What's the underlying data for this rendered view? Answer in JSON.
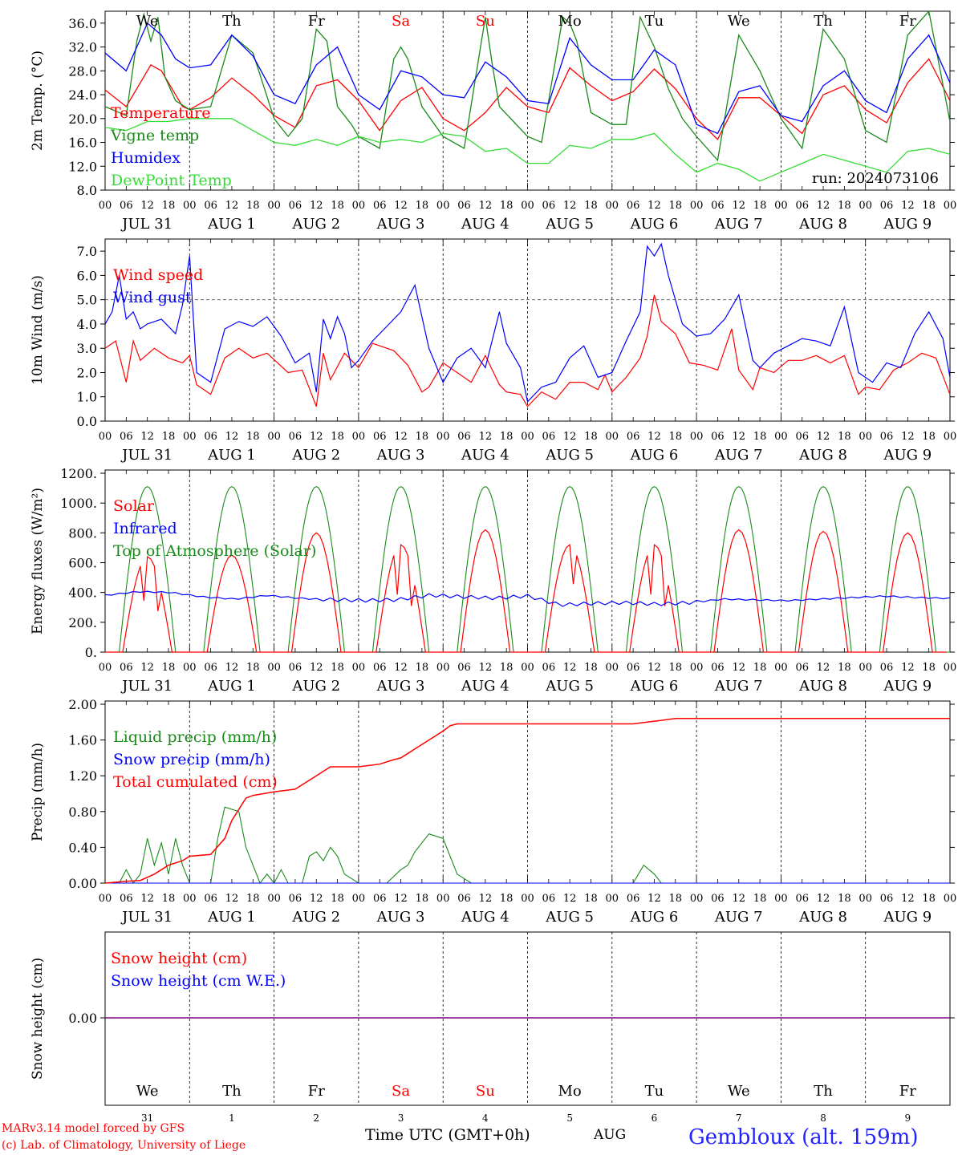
{
  "colors": {
    "red": "#ff0000",
    "green": "#1a8a1a",
    "blue": "#0000ff",
    "lightgreen": "#33dd33",
    "purple": "#800080",
    "weekend": "#ff0000"
  },
  "footer": {
    "model": "MARv3.14 model forced by GFS",
    "copyright": "(c) Lab. of Climatology, University of Liege",
    "xaxis_title": "Time UTC (GMT+0h)",
    "month": "AUG",
    "station": "Gembloux (alt. 159m)"
  },
  "days": [
    {
      "dow": "We",
      "date": "JUL 31",
      "num": "31",
      "weekend": false
    },
    {
      "dow": "Th",
      "date": "AUG  1",
      "num": "1",
      "weekend": false
    },
    {
      "dow": "Fr",
      "date": "AUG  2",
      "num": "2",
      "weekend": false
    },
    {
      "dow": "Sa",
      "date": "AUG  3",
      "num": "3",
      "weekend": true
    },
    {
      "dow": "Su",
      "date": "AUG  4",
      "num": "4",
      "weekend": true
    },
    {
      "dow": "Mo",
      "date": "AUG  5",
      "num": "5",
      "weekend": false
    },
    {
      "dow": "Tu",
      "date": "AUG  6",
      "num": "6",
      "weekend": false
    },
    {
      "dow": "We",
      "date": "AUG  7",
      "num": "7",
      "weekend": false
    },
    {
      "dow": "Th",
      "date": "AUG  8",
      "num": "8",
      "weekend": false
    },
    {
      "dow": "Fr",
      "date": "AUG  9",
      "num": "9",
      "weekend": false
    }
  ],
  "hour_ticks": [
    "00",
    "06",
    "12",
    "18"
  ],
  "chart_data": [
    {
      "type": "line",
      "id": "temp",
      "ylabel": "2m Temp. (°C)",
      "ylim": [
        8,
        38
      ],
      "yticks": [
        "8.0",
        "12.0",
        "16.0",
        "20.0",
        "24.0",
        "28.0",
        "32.0",
        "36.0"
      ],
      "annotation": "run: 2024073106",
      "x_unit": "hours since JUL 31 00 UTC",
      "series": [
        {
          "name": "Temperature",
          "color": "red",
          "x": [
            0,
            6,
            10,
            13,
            16,
            20,
            22,
            24,
            30,
            36,
            42,
            48,
            54,
            60,
            66,
            72,
            78,
            84,
            90,
            96,
            102,
            108,
            114,
            120,
            126,
            132,
            138,
            144,
            150,
            156,
            162,
            168,
            174,
            180,
            186,
            192,
            198,
            204,
            210,
            216,
            222,
            228,
            234,
            240
          ],
          "y": [
            24.8,
            22,
            26,
            29,
            28,
            24,
            22,
            21.5,
            23.5,
            26.8,
            24,
            20.5,
            18.5,
            25.5,
            26.5,
            23,
            18,
            23,
            25.2,
            20,
            18,
            21,
            25.2,
            22,
            21,
            28.5,
            25.5,
            23,
            24.5,
            28.3,
            25,
            20,
            16.5,
            23.5,
            23.5,
            20.5,
            17.5,
            24,
            25.5,
            21.5,
            19.3,
            26,
            30,
            23
          ]
        },
        {
          "name": "Vigne temp",
          "color": "green",
          "x": [
            0,
            6,
            9,
            11,
            13,
            15,
            17,
            20,
            24,
            30,
            36,
            42,
            48,
            52,
            56,
            60,
            63,
            66,
            70,
            72,
            78,
            82,
            84,
            86,
            90,
            96,
            102,
            108,
            110,
            112,
            120,
            124,
            130,
            132,
            134,
            138,
            144,
            148,
            152,
            156,
            160,
            164,
            168,
            174,
            180,
            186,
            192,
            198,
            204,
            210,
            216,
            222,
            228,
            234,
            240
          ],
          "y": [
            22,
            20.5,
            33,
            37.5,
            33,
            37,
            27,
            23,
            21.5,
            22,
            34,
            31,
            20,
            17,
            20,
            35,
            33,
            22,
            19,
            17,
            15,
            30,
            32,
            30,
            22,
            17,
            15,
            37,
            29,
            22,
            17,
            16,
            37,
            36,
            33,
            21,
            19,
            19,
            37,
            32,
            25,
            20,
            17,
            13,
            34,
            28,
            20,
            15,
            35,
            30,
            18,
            16,
            34,
            38,
            19.5
          ]
        },
        {
          "name": "Humidex",
          "color": "blue",
          "x": [
            0,
            6,
            9,
            12,
            16,
            20,
            24,
            30,
            36,
            42,
            48,
            54,
            60,
            66,
            72,
            78,
            84,
            90,
            96,
            102,
            108,
            114,
            120,
            126,
            132,
            138,
            144,
            150,
            156,
            162,
            168,
            174,
            180,
            186,
            192,
            198,
            204,
            210,
            216,
            222,
            228,
            234,
            240
          ],
          "y": [
            31,
            28,
            32,
            36,
            34,
            30,
            28.5,
            29,
            34,
            30.5,
            24,
            22.5,
            29,
            32,
            24,
            21.5,
            28,
            27,
            24,
            23.5,
            29.5,
            27,
            23,
            22.5,
            33.5,
            29,
            26.5,
            26.5,
            31.5,
            29,
            19,
            17.5,
            24.5,
            25.5,
            20.5,
            19.5,
            25.5,
            28,
            23,
            21,
            30,
            34,
            26
          ]
        },
        {
          "name": "DewPoint Temp",
          "color": "lightgreen",
          "x": [
            0,
            6,
            12,
            18,
            24,
            30,
            36,
            42,
            48,
            54,
            60,
            66,
            72,
            78,
            84,
            90,
            96,
            102,
            108,
            114,
            120,
            126,
            132,
            138,
            144,
            150,
            156,
            162,
            168,
            174,
            180,
            186,
            192,
            198,
            204,
            210,
            216,
            222,
            228,
            234,
            240
          ],
          "y": [
            18.5,
            18,
            19.5,
            19.5,
            20,
            20,
            20,
            18,
            16,
            15.5,
            16.5,
            15.5,
            17,
            16,
            16.5,
            16,
            17.5,
            17,
            14.5,
            15,
            12.5,
            12.5,
            15.5,
            15,
            16.5,
            16.5,
            17.5,
            14,
            11,
            12.5,
            11.5,
            9.5,
            11,
            12.5,
            14,
            13,
            12,
            11,
            14.5,
            15,
            14
          ]
        }
      ]
    },
    {
      "type": "line",
      "id": "wind",
      "ylabel": "10m Wind (m/s)",
      "ylim": [
        0,
        7.5
      ],
      "yticks": [
        "0.0",
        "1.0",
        "2.0",
        "3.0",
        "4.0",
        "5.0",
        "6.0",
        "7.0"
      ],
      "x_unit": "hours since JUL 31 00 UTC",
      "series": [
        {
          "name": "Wind speed",
          "color": "red",
          "x": [
            0,
            3,
            6,
            8,
            10,
            14,
            18,
            22,
            24,
            26,
            30,
            34,
            38,
            42,
            46,
            52,
            56,
            60,
            62,
            64,
            68,
            72,
            76,
            82,
            86,
            90,
            92,
            96,
            100,
            104,
            108,
            112,
            114,
            118,
            120,
            124,
            128,
            132,
            136,
            140,
            142,
            144,
            148,
            152,
            154,
            156,
            158,
            162,
            166,
            170,
            174,
            178,
            180,
            184,
            186,
            190,
            194,
            198,
            202,
            206,
            210,
            214,
            216,
            220,
            224,
            228,
            232,
            236,
            240
          ],
          "y": [
            3,
            3.3,
            1.6,
            3.3,
            2.5,
            3,
            2.6,
            2.4,
            2.7,
            1.5,
            1.1,
            2.6,
            3,
            2.6,
            2.8,
            2,
            2.1,
            0.6,
            2.8,
            1.7,
            2.8,
            2.2,
            3.2,
            2.9,
            2.3,
            1.2,
            1.4,
            2.4,
            2,
            1.6,
            2.7,
            1.5,
            1.2,
            1.1,
            0.6,
            1.2,
            0.9,
            1.6,
            1.6,
            1.3,
            1.9,
            1.2,
            1.8,
            2.6,
            3.5,
            5.2,
            4.1,
            3.6,
            2.4,
            2.3,
            2.1,
            3.8,
            2.1,
            1.3,
            2.2,
            2,
            2.5,
            2.5,
            2.7,
            2.4,
            2.7,
            1.1,
            1.4,
            1.3,
            2.1,
            2.4,
            2.8,
            2.6,
            1.1
          ]
        },
        {
          "name": "Wind gust",
          "color": "blue",
          "x": [
            0,
            2,
            4,
            6,
            8,
            10,
            12,
            16,
            20,
            22,
            24,
            26,
            30,
            34,
            38,
            42,
            46,
            50,
            54,
            58,
            60,
            62,
            64,
            66,
            68,
            70,
            72,
            76,
            80,
            84,
            88,
            92,
            96,
            100,
            104,
            108,
            112,
            114,
            118,
            120,
            124,
            128,
            132,
            136,
            140,
            144,
            148,
            152,
            154,
            156,
            158,
            160,
            164,
            168,
            172,
            176,
            180,
            184,
            186,
            190,
            194,
            198,
            202,
            206,
            210,
            214,
            218,
            222,
            226,
            230,
            234,
            238,
            240
          ],
          "y": [
            4,
            4.5,
            6,
            4.2,
            4.5,
            3.8,
            4,
            4.2,
            3.6,
            4.8,
            6.8,
            2,
            1.6,
            3.8,
            4.1,
            3.9,
            4.3,
            3.5,
            2.4,
            2.8,
            1.2,
            4.2,
            3.4,
            4.3,
            3.6,
            2.2,
            2.5,
            3.3,
            3.9,
            4.5,
            5.6,
            3,
            1.6,
            2.6,
            3,
            2.2,
            4.5,
            3.2,
            2.2,
            0.8,
            1.4,
            1.6,
            2.6,
            3.1,
            1.8,
            2,
            3.3,
            4.5,
            7.2,
            6.8,
            7.3,
            6,
            4,
            3.5,
            3.6,
            4.2,
            5.2,
            2.5,
            2.2,
            2.8,
            3.1,
            3.4,
            3.3,
            3.1,
            4.7,
            2,
            1.6,
            2.4,
            2.2,
            3.6,
            4.5,
            3.4,
            1.8
          ]
        }
      ],
      "ref_line": 5.0
    },
    {
      "type": "line",
      "id": "energy",
      "ylabel": "Energy fluxes (W/m²)",
      "ylim": [
        0,
        1200
      ],
      "yticks": [
        "0.",
        "200.",
        "400.",
        "600.",
        "800.",
        "1000.",
        "1200."
      ],
      "x_unit": "hours since JUL 31 00 UTC",
      "series": [
        {
          "name": "Solar",
          "color": "red",
          "peaks": [
            [
              12,
              640
            ],
            [
              36,
              650
            ],
            [
              60,
              800
            ],
            [
              84,
              720
            ],
            [
              108,
              820
            ],
            [
              132,
              720
            ],
            [
              156,
              720
            ],
            [
              180,
              820
            ],
            [
              204,
              810
            ],
            [
              228,
              800
            ]
          ]
        },
        {
          "name": "Infrared",
          "color": "blue",
          "levels": [
            380,
            405,
            400,
            370,
            355,
            380,
            360,
            350,
            345,
            350,
            380,
            370,
            360,
            375,
            315,
            325,
            330,
            320,
            330,
            355,
            350,
            345,
            355,
            365,
            375,
            365,
            360
          ]
        },
        {
          "name": "Top of Atmosphere (Solar)",
          "color": "green",
          "peak": 1110
        }
      ]
    },
    {
      "type": "line",
      "id": "precip",
      "ylabel": "Precip (mm/h)",
      "ylim": [
        0,
        2
      ],
      "yticks": [
        "0.00",
        "0.40",
        "0.80",
        "1.20",
        "1.60",
        "2.00"
      ],
      "x_unit": "hours since JUL 31 00 UTC",
      "series": [
        {
          "name": "Liquid precip (mm/h)",
          "color": "green",
          "x": [
            0,
            4,
            6,
            8,
            10,
            12,
            14,
            16,
            18,
            20,
            22,
            24,
            30,
            32,
            34,
            38,
            40,
            44,
            46,
            48,
            50,
            52,
            56,
            58,
            60,
            62,
            64,
            66,
            68,
            72,
            80,
            84,
            86,
            88,
            92,
            96,
            98,
            100,
            104,
            150,
            153,
            156,
            158,
            240
          ],
          "y": [
            0,
            0,
            0.15,
            0,
            0.1,
            0.5,
            0.2,
            0.45,
            0.1,
            0.5,
            0.2,
            0,
            0,
            0.5,
            0.85,
            0.8,
            0.4,
            0,
            0.1,
            0,
            0.15,
            0,
            0,
            0.3,
            0.35,
            0.25,
            0.4,
            0.3,
            0.1,
            0,
            0,
            0.15,
            0.2,
            0.35,
            0.55,
            0.5,
            0.3,
            0.1,
            0,
            0,
            0.2,
            0.1,
            0,
            0
          ]
        },
        {
          "name": "Snow precip (mm/h)",
          "color": "blue",
          "x": [
            0,
            240
          ],
          "y": [
            0,
            0
          ]
        },
        {
          "name": "Total cumulated (cm)",
          "color": "red",
          "x": [
            0,
            6,
            10,
            14,
            18,
            22,
            24,
            30,
            34,
            36,
            40,
            42,
            48,
            54,
            56,
            60,
            64,
            72,
            78,
            82,
            84,
            88,
            92,
            96,
            98,
            100,
            104,
            150,
            154,
            158,
            162,
            168,
            240
          ],
          "y": [
            0,
            0.02,
            0.03,
            0.1,
            0.2,
            0.25,
            0.3,
            0.32,
            0.5,
            0.7,
            0.95,
            0.98,
            1.02,
            1.05,
            1.1,
            1.2,
            1.3,
            1.3,
            1.33,
            1.38,
            1.4,
            1.5,
            1.6,
            1.7,
            1.76,
            1.78,
            1.78,
            1.78,
            1.8,
            1.82,
            1.84,
            1.84,
            1.84
          ]
        }
      ]
    },
    {
      "type": "line",
      "id": "snow",
      "ylabel": "Snow height (cm)",
      "yticks": [
        "0.00"
      ],
      "x_unit": "hours since JUL 31 00 UTC",
      "series": [
        {
          "name": "Snow height (cm)",
          "color": "red",
          "x": [
            0,
            240
          ],
          "y": [
            0,
            0
          ]
        },
        {
          "name": "Snow height (cm W.E.)",
          "color": "blue",
          "x": [
            0,
            240
          ],
          "y": [
            0,
            0
          ]
        }
      ]
    }
  ]
}
